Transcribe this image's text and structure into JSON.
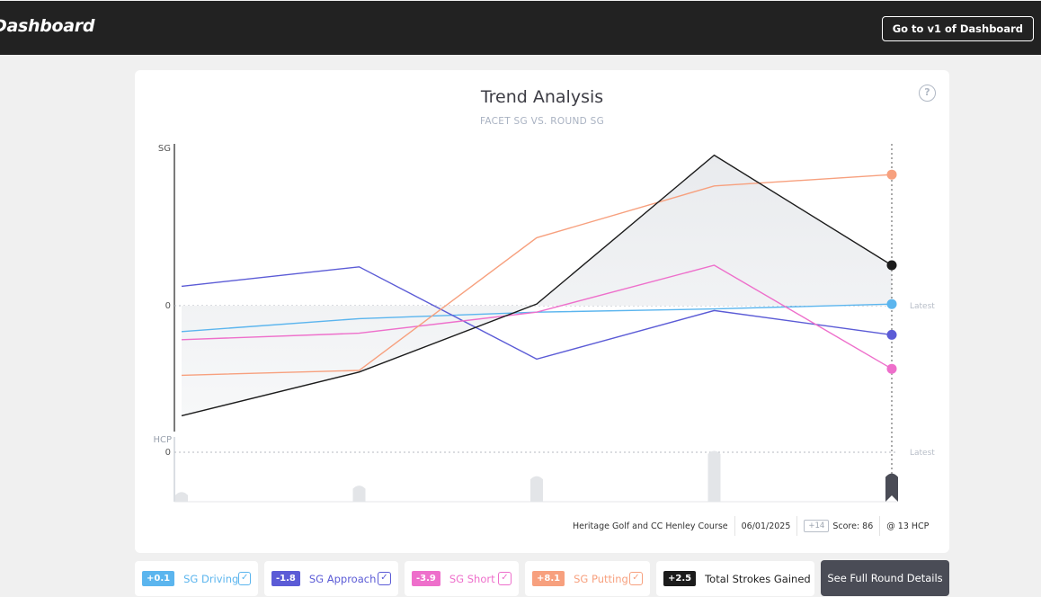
{
  "header": {
    "title": "Dashboard",
    "v1_button_label": "Go to v1 of Dashboard"
  },
  "card": {
    "title": "Trend Analysis",
    "subtitle": "FACET SG VS. ROUND SG",
    "help_icon_glyph": "?"
  },
  "chart_data": {
    "type": "line",
    "title": "Trend Analysis",
    "subtitle": "FACET SG VS. ROUND SG",
    "ylabel": "SG",
    "y_tick_zero": "0",
    "latest_label": "Latest",
    "rounds": 5,
    "ylim": [
      -8,
      10
    ],
    "series": [
      {
        "name": "SG Driving",
        "color": "#5bb5ee",
        "values": [
          -1.6,
          -0.8,
          -0.4,
          -0.2,
          0.1
        ]
      },
      {
        "name": "SG Approach",
        "color": "#5b5bd6",
        "values": [
          1.2,
          2.4,
          -3.3,
          -0.3,
          -1.8
        ]
      },
      {
        "name": "SG Short",
        "color": "#ee6fcb",
        "values": [
          -2.1,
          -1.7,
          -0.4,
          2.5,
          -3.9
        ]
      },
      {
        "name": "SG Putting",
        "color": "#f7a07e",
        "values": [
          -4.3,
          -4.0,
          4.2,
          7.4,
          8.1
        ]
      },
      {
        "name": "Total Strokes Gained",
        "color": "#1c1c1c",
        "values": [
          -6.8,
          -4.1,
          0.1,
          9.3,
          2.5
        ]
      }
    ],
    "hcp_panel": {
      "label": "HCP",
      "tick_zero": "0",
      "latest_label": "Latest",
      "bar_color": "#e3e5e8",
      "latest_bar_color": "#4a4c56",
      "values": [
        0.7,
        1.1,
        1.7,
        3.3,
        1.9
      ]
    }
  },
  "round_info": {
    "course": "Heritage Golf and CC Henley Course",
    "date": "06/01/2025",
    "hcp_chip": "+14",
    "score": "Score: 86",
    "hcp": "@ 13 HCP"
  },
  "legend": [
    {
      "value": "+0.1",
      "label": "SG Driving",
      "color": "#5bb5ee",
      "checked": "✓"
    },
    {
      "value": "-1.8",
      "label": "SG Approach",
      "color": "#5b5bd6",
      "checked": "✓"
    },
    {
      "value": "-3.9",
      "label": "SG Short",
      "color": "#ee6fcb",
      "checked": "✓"
    },
    {
      "value": "+8.1",
      "label": "SG Putting",
      "color": "#f7a07e",
      "checked": "✓"
    }
  ],
  "total": {
    "value": "+2.5",
    "label": "Total Strokes Gained",
    "color": "#1c1c1c"
  },
  "details_button_label": "See Full Round Details"
}
